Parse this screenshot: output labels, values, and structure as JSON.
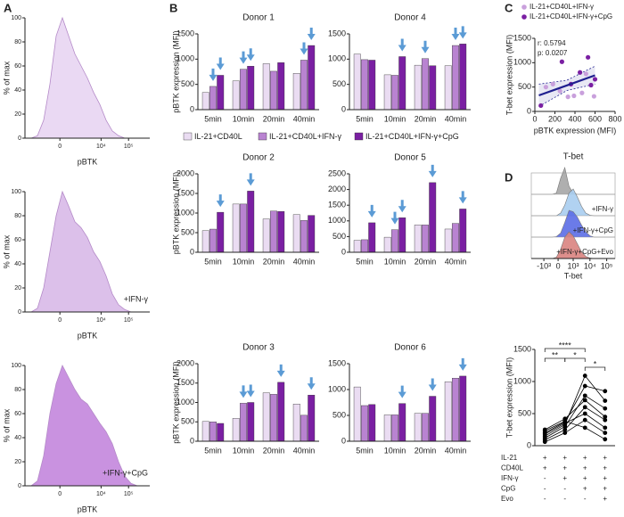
{
  "panel_labels": [
    "A",
    "B",
    "C",
    "D"
  ],
  "chart_data": [
    {
      "type": "area",
      "ylabel": "% of max",
      "xlabel": "pBTK",
      "color": "#ead9f3",
      "x": [
        0,
        5,
        10,
        15,
        20,
        25,
        30,
        35,
        40,
        45,
        50,
        55,
        60,
        65,
        70,
        75,
        80,
        85,
        90,
        95,
        100
      ],
      "values": [
        0,
        0,
        2,
        15,
        45,
        85,
        100,
        85,
        70,
        60,
        50,
        38,
        28,
        15,
        6,
        2,
        0,
        0,
        0,
        0,
        0
      ],
      "xlim": [
        0,
        100
      ],
      "ylim": [
        0,
        100
      ],
      "yticks": [
        0,
        20,
        40,
        60,
        80,
        100
      ],
      "xticks": [
        {
          "value": 28,
          "label": "0"
        },
        {
          "value": 61,
          "label": "10⁴"
        },
        {
          "value": 83,
          "label": "10⁵"
        }
      ]
    },
    {
      "type": "area",
      "ylabel": "% of max",
      "xlabel": "pBTK",
      "annotation": "+IFN-γ",
      "color": "#dcc0ea",
      "x": [
        0,
        5,
        10,
        15,
        20,
        25,
        30,
        35,
        40,
        45,
        50,
        55,
        60,
        65,
        70,
        75,
        80,
        85,
        90,
        95,
        100
      ],
      "values": [
        0,
        0,
        3,
        20,
        50,
        80,
        100,
        88,
        75,
        70,
        62,
        50,
        42,
        30,
        15,
        6,
        2,
        0,
        0,
        0,
        0
      ],
      "xlim": [
        0,
        100
      ],
      "ylim": [
        0,
        100
      ],
      "yticks": [
        0,
        20,
        40,
        60,
        80,
        100
      ],
      "xticks": [
        {
          "value": 28,
          "label": "0"
        },
        {
          "value": 61,
          "label": "10⁴"
        },
        {
          "value": 83,
          "label": "10⁵"
        }
      ]
    },
    {
      "type": "area",
      "ylabel": "% of max",
      "xlabel": "pBTK",
      "annotation": "+IFN-γ+CpG",
      "color": "#c992e0",
      "x": [
        0,
        5,
        10,
        15,
        20,
        25,
        30,
        35,
        40,
        45,
        50,
        55,
        60,
        65,
        70,
        75,
        80,
        85,
        90,
        95,
        100
      ],
      "values": [
        0,
        0,
        4,
        25,
        60,
        85,
        100,
        90,
        80,
        72,
        68,
        60,
        52,
        45,
        35,
        20,
        8,
        2,
        0,
        0,
        0
      ],
      "xlim": [
        0,
        100
      ],
      "ylim": [
        0,
        100
      ],
      "yticks": [
        0,
        20,
        40,
        60,
        80,
        100
      ],
      "xticks": [
        {
          "value": 28,
          "label": "0"
        },
        {
          "value": 61,
          "label": "10⁴"
        },
        {
          "value": 83,
          "label": "10⁵"
        }
      ]
    },
    {
      "type": "bar",
      "title": "Donor 1",
      "ylabel": "pBTK expression (MFI)",
      "categories": [
        "5min",
        "10min",
        "20min",
        "40min"
      ],
      "series": [
        {
          "name": "IL-21+CD40L",
          "color": "#eadcf2",
          "values": [
            340,
            570,
            910,
            720
          ]
        },
        {
          "name": "IL-21+CD40L+IFN-γ",
          "color": "#b983d1",
          "values": [
            460,
            800,
            760,
            980
          ]
        },
        {
          "name": "IL-21+CD40L+IFN-γ+CpG",
          "color": "#7a1fa2",
          "values": [
            680,
            860,
            930,
            1270
          ]
        }
      ],
      "ylim": [
        0,
        1500
      ],
      "yticks": [
        0,
        500,
        1000,
        1500
      ]
    },
    {
      "type": "bar",
      "title": "Donor 4",
      "categories": [
        "5min",
        "10min",
        "20min",
        "40min"
      ],
      "series": [
        {
          "color": "#eadcf2",
          "values": [
            1100,
            690,
            880,
            870
          ]
        },
        {
          "color": "#b983d1",
          "values": [
            990,
            680,
            1010,
            1270
          ]
        },
        {
          "color": "#7a1fa2",
          "values": [
            980,
            1050,
            870,
            1300
          ]
        }
      ],
      "ylim": [
        0,
        1500
      ],
      "yticks": [
        0,
        500,
        1000,
        1500
      ]
    },
    {
      "type": "bar",
      "title": "Donor 2",
      "ylabel": "pBTK expression (MFI)",
      "categories": [
        "5min",
        "10min",
        "20min",
        "40min"
      ],
      "series": [
        {
          "color": "#eadcf2",
          "values": [
            550,
            1230,
            850,
            960
          ]
        },
        {
          "color": "#b983d1",
          "values": [
            590,
            1230,
            1050,
            810
          ]
        },
        {
          "color": "#7a1fa2",
          "values": [
            1020,
            1560,
            1040,
            940
          ]
        }
      ],
      "ylim": [
        0,
        2000
      ],
      "yticks": [
        0,
        500,
        1000,
        1500,
        2000
      ]
    },
    {
      "type": "bar",
      "title": "Donor 5",
      "categories": [
        "5min",
        "10min",
        "20min",
        "40min"
      ],
      "series": [
        {
          "color": "#eadcf2",
          "values": [
            380,
            480,
            870,
            740
          ]
        },
        {
          "color": "#b983d1",
          "values": [
            400,
            720,
            870,
            920
          ]
        },
        {
          "color": "#7a1fa2",
          "values": [
            940,
            1100,
            2220,
            1380
          ]
        }
      ],
      "ylim": [
        0,
        2500
      ],
      "yticks": [
        0,
        500,
        1000,
        1500,
        2000,
        2500
      ]
    },
    {
      "type": "bar",
      "title": "Donor 3",
      "ylabel": "pBTK expression (MFI)",
      "categories": [
        "5min",
        "10min",
        "20min",
        "40min"
      ],
      "series": [
        {
          "color": "#eadcf2",
          "values": [
            510,
            590,
            1250,
            960
          ]
        },
        {
          "color": "#b983d1",
          "values": [
            500,
            980,
            1210,
            670
          ]
        },
        {
          "color": "#7a1fa2",
          "values": [
            460,
            1000,
            1520,
            1190
          ]
        }
      ],
      "ylim": [
        0,
        2000
      ],
      "yticks": [
        0,
        500,
        1000,
        1500,
        2000
      ]
    },
    {
      "type": "bar",
      "title": "Donor 6",
      "categories": [
        "5min",
        "10min",
        "20min",
        "40min"
      ],
      "series": [
        {
          "color": "#eadcf2",
          "values": [
            1050,
            510,
            540,
            1150
          ]
        },
        {
          "color": "#b983d1",
          "values": [
            690,
            510,
            540,
            1220
          ]
        },
        {
          "color": "#7a1fa2",
          "values": [
            710,
            730,
            870,
            1260
          ]
        }
      ],
      "ylim": [
        0,
        1500
      ],
      "yticks": [
        0,
        500,
        1000,
        1500
      ]
    },
    {
      "type": "scatter",
      "xlabel": "pBTK expression (MFI)",
      "ylabel": "T-bet expression (MFI)",
      "series": [
        {
          "name": "IL-21+CD40L+IFN-γ",
          "color": "#c9a0dc",
          "x": [
            110,
            180,
            250,
            330,
            390,
            470,
            510,
            590
          ],
          "values": [
            500,
            560,
            420,
            300,
            320,
            380,
            770,
            310
          ]
        },
        {
          "name": "IL-21+CD40L+IFN-γ+CpG",
          "color": "#7a1fa2",
          "x": [
            60,
            270,
            360,
            450,
            530,
            600,
            560
          ],
          "values": [
            120,
            1020,
            560,
            800,
            1110,
            660,
            540
          ]
        }
      ],
      "xlim": [
        0,
        800
      ],
      "xticks": [
        0,
        200,
        400,
        600,
        800
      ],
      "ylim": [
        0,
        1500
      ],
      "yticks": [
        0,
        500,
        1000,
        1500
      ],
      "annotations": [
        "r: 0.5794",
        "p: 0.0207"
      ],
      "fit": {
        "x": [
          40,
          320,
          600
        ],
        "y": [
          330,
          535,
          740
        ],
        "lower": [
          100,
          430,
          560
        ],
        "upper": [
          560,
          640,
          930
        ]
      },
      "fit_color": "#1f1f8f"
    },
    {
      "type": "ridge",
      "title": "T-bet",
      "xlabel": "T-bet",
      "x": [
        0,
        5,
        10,
        15,
        20,
        25,
        30,
        35,
        40,
        45,
        50,
        55,
        60,
        65,
        70,
        75,
        80,
        85,
        90,
        95,
        100
      ],
      "series": [
        {
          "color": "#a6a6a6",
          "values": [
            0,
            0,
            0,
            0,
            0,
            0,
            5,
            60,
            100,
            30,
            5,
            0,
            0,
            0,
            0,
            0,
            0,
            0,
            0,
            0,
            0
          ]
        },
        {
          "name": "+IFN-γ",
          "color": "#a9cdf0",
          "values": [
            0,
            0,
            0,
            0,
            0,
            0,
            0,
            10,
            40,
            85,
            100,
            70,
            35,
            10,
            2,
            0,
            0,
            0,
            0,
            0,
            0
          ]
        },
        {
          "name": "+IFN-γ+CpG",
          "color": "#5b6de6",
          "values": [
            0,
            0,
            0,
            0,
            0,
            0,
            2,
            15,
            55,
            100,
            95,
            75,
            45,
            20,
            5,
            0,
            0,
            0,
            0,
            0,
            0
          ]
        },
        {
          "name": "+IFN-γ+CpG+Evo",
          "color": "#d9837f",
          "values": [
            0,
            0,
            0,
            0,
            0,
            0,
            5,
            35,
            80,
            100,
            85,
            55,
            25,
            8,
            2,
            0,
            0,
            0,
            0,
            0,
            0
          ]
        }
      ],
      "xlim": [
        0,
        100
      ],
      "ylim": [
        0,
        100
      ],
      "xticks": [
        {
          "value": 15,
          "label": "-10³"
        },
        {
          "value": 32,
          "label": "0"
        },
        {
          "value": 50,
          "label": "10³"
        },
        {
          "value": 70,
          "label": "10⁴"
        },
        {
          "value": 90,
          "label": "10⁵"
        }
      ]
    },
    {
      "type": "paired",
      "ylabel": "T-bet expression (MFI)",
      "color": "#000000",
      "series": [
        {
          "values": [
            150,
            330,
            1090,
            700
          ]
        },
        {
          "values": [
            200,
            370,
            930,
            850
          ]
        },
        {
          "values": [
            120,
            300,
            780,
            580
          ]
        },
        {
          "values": [
            250,
            420,
            710,
            450
          ]
        },
        {
          "values": [
            90,
            250,
            600,
            400
          ]
        },
        {
          "values": [
            180,
            350,
            500,
            280
          ]
        },
        {
          "values": [
            60,
            200,
            400,
            200
          ]
        },
        {
          "values": [
            230,
            380,
            280,
            100
          ]
        }
      ],
      "ylim": [
        0,
        1500
      ],
      "yticks": [
        0,
        500,
        1000,
        1500
      ],
      "significance": [
        "**",
        "****",
        "*",
        "*"
      ],
      "conditions": [
        {
          "label": "IL-21",
          "signs": [
            "+",
            "+",
            "+",
            "+"
          ]
        },
        {
          "label": "CD40L",
          "signs": [
            "+",
            "+",
            "+",
            "+"
          ]
        },
        {
          "label": "IFN-γ",
          "signs": [
            "-",
            "+",
            "+",
            "+"
          ]
        },
        {
          "label": "CpG",
          "signs": [
            "-",
            "-",
            "+",
            "+"
          ]
        },
        {
          "label": "Evo",
          "signs": [
            "-",
            "-",
            "-",
            "+"
          ]
        }
      ]
    }
  ]
}
